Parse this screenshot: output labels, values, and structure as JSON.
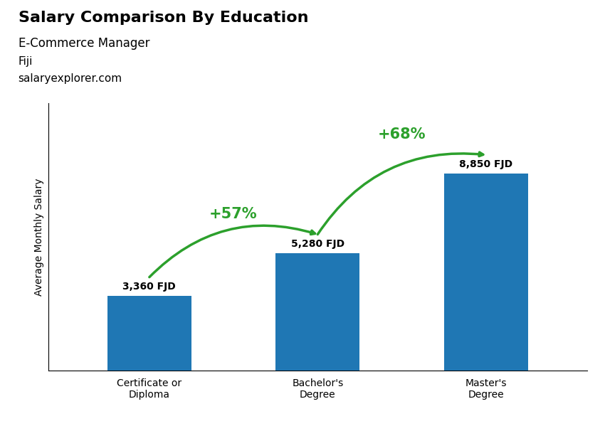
{
  "chart_data": {
    "type": "bar",
    "title": "Salary Comparison By Education",
    "subtitle": "E-Commerce Manager",
    "categories": [
      "Certificate or\nDiploma",
      "Bachelor's\nDegree",
      "Master's\nDegree"
    ],
    "values": [
      3360,
      5280,
      8850
    ],
    "value_labels": [
      "3,360 FJD",
      "5,280 FJD",
      "8,850 FJD"
    ],
    "data_labels": true,
    "ylabel": "Average Monthly Salary",
    "ylim": [
      0,
      12000
    ],
    "tick_labels": "x",
    "annotations": [
      {
        "text": "+57%",
        "from": "Certificate or\nDiploma",
        "to": "Bachelor's\nDegree"
      },
      {
        "text": "+68%",
        "from": "Bachelor's\nDegree",
        "to": "Master's\nDegree"
      },
      {
        "text": "Fiji"
      },
      {
        "text": "salaryexplorer.com"
      }
    ]
  }
}
